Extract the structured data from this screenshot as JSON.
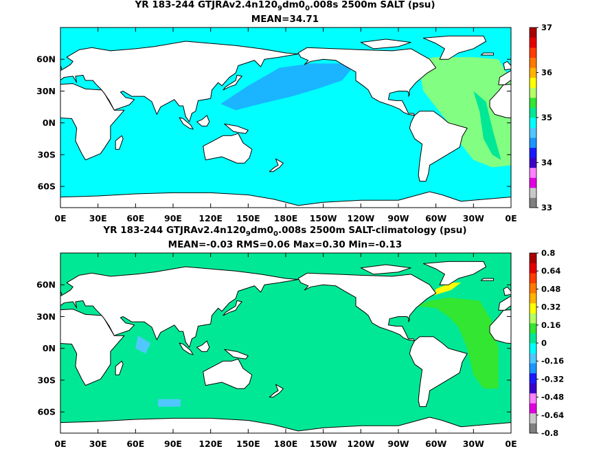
{
  "chart_data": [
    {
      "type": "heatmap",
      "title_parts": [
        "YR 183-244 GTJRAv2.4n120",
        "9",
        "dm0",
        "0",
        ".008s 2500m SALT (psu)"
      ],
      "subtitle": "MEAN=34.71",
      "x_ticks": [
        "0E",
        "30E",
        "60E",
        "90E",
        "120E",
        "150E",
        "180E",
        "150W",
        "120W",
        "90W",
        "60W",
        "30W",
        "0E"
      ],
      "y_ticks": [
        "60N",
        "30N",
        "0N",
        "30S",
        "60S"
      ],
      "y_tick_lat": [
        60,
        30,
        0,
        -30,
        -60
      ],
      "xlim": [
        0,
        360
      ],
      "ylim": [
        -80,
        90
      ],
      "colorbar": {
        "ticks": [
          "37",
          "36",
          "35",
          "34",
          "33"
        ],
        "levels": [
          33,
          37
        ],
        "colors": [
          "#7f7f7f",
          "#c8c8c8",
          "#e000e0",
          "#ff80ff",
          "#3a00c8",
          "#1a1aff",
          "#1a96ff",
          "#50c8ff",
          "#00ffff",
          "#00e896",
          "#32e632",
          "#b4ff64",
          "#ffff00",
          "#ffb400",
          "#ff7800",
          "#ff3c00",
          "#e60000",
          "#aa0000"
        ]
      },
      "regions": [
        {
          "name": "background_salinity",
          "value": 34.7,
          "color": "#00ffff"
        },
        {
          "name": "north_pacific",
          "value": 34.65,
          "color": "#1ab4ff"
        },
        {
          "name": "atlantic",
          "value": 34.95,
          "color": "#82ff82"
        },
        {
          "name": "deep_atlantic_core",
          "value": 34.9,
          "color": "#00e896"
        }
      ]
    },
    {
      "type": "heatmap",
      "title_parts": [
        "YR 183-244 GTJRAv2.4n120",
        "9",
        "dm0",
        "0",
        ".008s 2500m SALT-climatology (psu)"
      ],
      "subtitle": "MEAN=-0.03   RMS=0.06   Max=0.30   Min=-0.13",
      "x_ticks": [
        "0E",
        "30E",
        "60E",
        "90E",
        "120E",
        "150E",
        "180E",
        "150W",
        "120W",
        "90W",
        "60W",
        "30W",
        "0E"
      ],
      "y_ticks": [
        "60N",
        "30N",
        "0N",
        "30S",
        "60S"
      ],
      "y_tick_lat": [
        60,
        30,
        0,
        -30,
        -60
      ],
      "xlim": [
        0,
        360
      ],
      "ylim": [
        -80,
        90
      ],
      "colorbar": {
        "ticks": [
          "0.8",
          "0.64",
          "0.48",
          "0.32",
          "0.16",
          "0",
          "-0.16",
          "-0.32",
          "-0.48",
          "-0.64",
          "-0.8"
        ],
        "levels": [
          -0.8,
          0.8
        ],
        "colors": [
          "#7f7f7f",
          "#c8c8c8",
          "#e000e0",
          "#ff80ff",
          "#3a00c8",
          "#1a1aff",
          "#1a96ff",
          "#50c8ff",
          "#00ffff",
          "#00e896",
          "#32e632",
          "#b4ff64",
          "#ffff00",
          "#ffb400",
          "#ff7800",
          "#ff3c00",
          "#e60000",
          "#aa0000"
        ]
      },
      "regions": [
        {
          "name": "background_bias",
          "value": -0.03,
          "color": "#00e896"
        },
        {
          "name": "north_atlantic",
          "value": 0.1,
          "color": "#32e632"
        },
        {
          "name": "labrador_sea",
          "value": 0.2,
          "color": "#ffff00"
        },
        {
          "name": "indian_ocean_patches",
          "value": -0.12,
          "color": "#50c8ff"
        }
      ]
    }
  ]
}
